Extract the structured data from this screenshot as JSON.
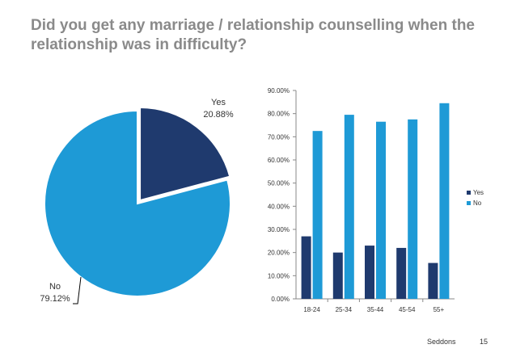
{
  "title": "Did you get any marriage / relationship counselling when the relationship was in difficulty?",
  "footer": {
    "source": "Seddons",
    "page": "15"
  },
  "chart_data": [
    {
      "type": "pie",
      "title": "",
      "slices": [
        {
          "label": "Yes",
          "value": 20.88,
          "display": "20.88%",
          "color": "#1f3a6e"
        },
        {
          "label": "No",
          "value": 79.12,
          "display": "79.12%",
          "color": "#1e9ad6"
        }
      ]
    },
    {
      "type": "bar",
      "title": "",
      "xlabel": "",
      "ylabel": "",
      "categories": [
        "18-24",
        "25-34",
        "35-44",
        "45-54",
        "55+"
      ],
      "series": [
        {
          "name": "Yes",
          "values": [
            27.0,
            20.0,
            23.0,
            22.0,
            15.5
          ],
          "color": "#1f3a6e"
        },
        {
          "name": "No",
          "values": [
            72.5,
            79.5,
            76.5,
            77.5,
            84.5
          ],
          "color": "#1e9ad6"
        }
      ],
      "ylim": [
        0,
        90
      ],
      "yticks": [
        "0.00%",
        "10.00%",
        "20.00%",
        "30.00%",
        "40.00%",
        "50.00%",
        "60.00%",
        "70.00%",
        "80.00%",
        "90.00%"
      ],
      "grid": false,
      "legend_position": "right"
    }
  ]
}
